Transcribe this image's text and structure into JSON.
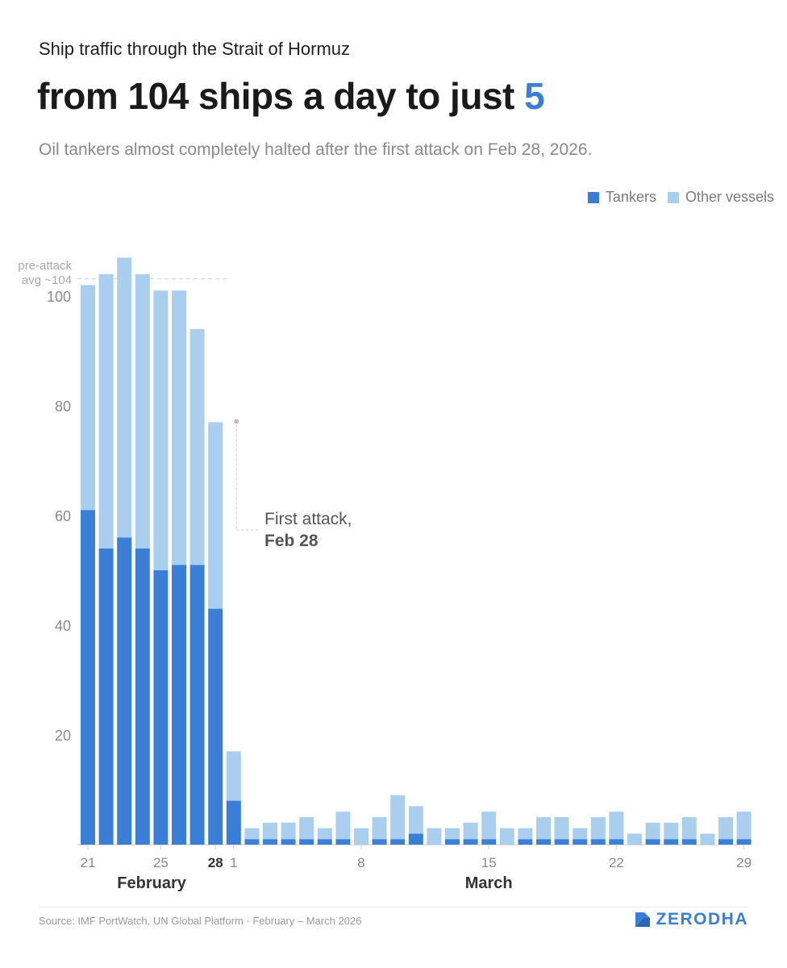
{
  "header": {
    "kicker": "Ship traffic through the Strait of Hormuz",
    "headline_main": "from 104 ships a day to just ",
    "headline_accent": "5",
    "subtitle": "Oil tankers almost completely halted after the first attack on Feb 28, 2026."
  },
  "legend": {
    "tankers": "Tankers",
    "other": "Other vessels"
  },
  "colors": {
    "tankers": "#3a7fd5",
    "other": "#a9ceee",
    "accent": "#3a7fd5"
  },
  "footer": {
    "source": "Source: IMF PortWatch, UN Global Platform · February – March 2026",
    "brand": "ZERODHA"
  },
  "chart_data": {
    "type": "bar",
    "stacked": true,
    "ylim": [
      0,
      110
    ],
    "yticks": [
      20,
      40,
      60,
      80,
      100
    ],
    "categories": [
      "21",
      "22",
      "23",
      "24",
      "25",
      "26",
      "27",
      "28",
      "1",
      "2",
      "3",
      "4",
      "5",
      "6",
      "7",
      "8",
      "9",
      "10",
      "11",
      "12",
      "13",
      "14",
      "15",
      "16",
      "17",
      "18",
      "19",
      "20",
      "21",
      "22",
      "23",
      "24",
      "25",
      "26",
      "27",
      "28",
      "29"
    ],
    "x_tick_labels": [
      {
        "index": 0,
        "label": "21",
        "bold": false
      },
      {
        "index": 4,
        "label": "25",
        "bold": false
      },
      {
        "index": 7,
        "label": "28",
        "bold": true
      },
      {
        "index": 8,
        "label": "1",
        "bold": false
      },
      {
        "index": 15,
        "label": "8",
        "bold": false
      },
      {
        "index": 22,
        "label": "15",
        "bold": false
      },
      {
        "index": 29,
        "label": "22",
        "bold": false
      },
      {
        "index": 36,
        "label": "29",
        "bold": false
      }
    ],
    "month_labels": [
      {
        "label": "February",
        "center_index": 3.5
      },
      {
        "label": "March",
        "center_index": 22
      }
    ],
    "series": [
      {
        "name": "Tankers",
        "values": [
          61,
          54,
          56,
          54,
          50,
          51,
          51,
          43,
          8,
          1,
          1,
          1,
          1,
          1,
          1,
          0,
          1,
          1,
          2,
          0,
          1,
          1,
          1,
          0,
          1,
          1,
          1,
          1,
          1,
          1,
          0,
          1,
          1,
          1,
          0,
          1,
          1
        ]
      },
      {
        "name": "Other vessels",
        "values": [
          41,
          50,
          51,
          50,
          51,
          50,
          43,
          34,
          9,
          2,
          3,
          3,
          4,
          2,
          5,
          3,
          4,
          8,
          5,
          3,
          2,
          3,
          5,
          3,
          2,
          4,
          4,
          2,
          4,
          5,
          2,
          3,
          3,
          4,
          2,
          4,
          5
        ]
      }
    ],
    "reference_line": {
      "value": 103,
      "label_line1": "pre-attack",
      "label_line2": "avg ~104"
    },
    "annotation": {
      "index": 7,
      "value": 77,
      "text_line1": "First attack,",
      "text_line2": "Feb 28"
    }
  }
}
